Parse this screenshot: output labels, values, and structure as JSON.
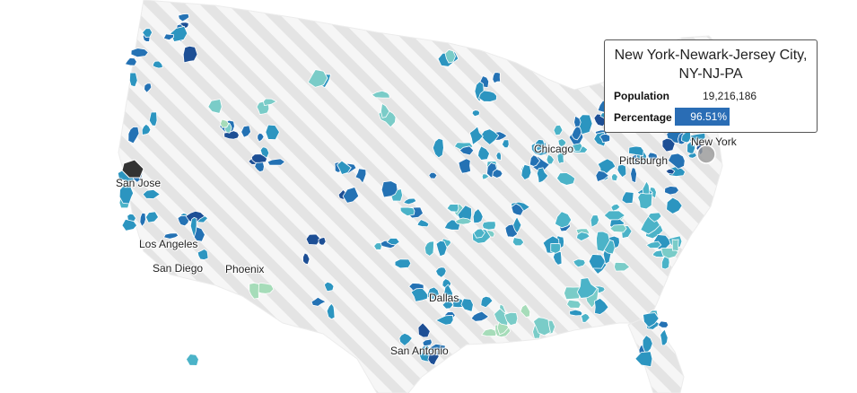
{
  "map": {
    "colors": {
      "ocean": "#ffffff",
      "land": "#f6f6f6",
      "hatch": "#e4e4e4",
      "border": "#ffffff",
      "scale": [
        "#c9ebc4",
        "#a6dcb9",
        "#7accc8",
        "#4bb3c8",
        "#2c95c0",
        "#2472b4",
        "#1d4f95",
        "#333333"
      ],
      "highlight": "#999999"
    },
    "labels": [
      "San Jose",
      "Los Angeles",
      "San Diego",
      "Phoenix",
      "Dallas",
      "San Antonio",
      "Chicago",
      "Pittsburgh",
      "New York"
    ]
  },
  "tooltip": {
    "title_line1": "New York-Newark-Jersey City,",
    "title_line2": "NY-NJ-PA",
    "population_label": "Population",
    "population_value": "19,216,186",
    "percentage_label": "Percentage",
    "percentage_value": "96.51%",
    "percentage": 96.51,
    "bar_color": "#2a6db5"
  }
}
